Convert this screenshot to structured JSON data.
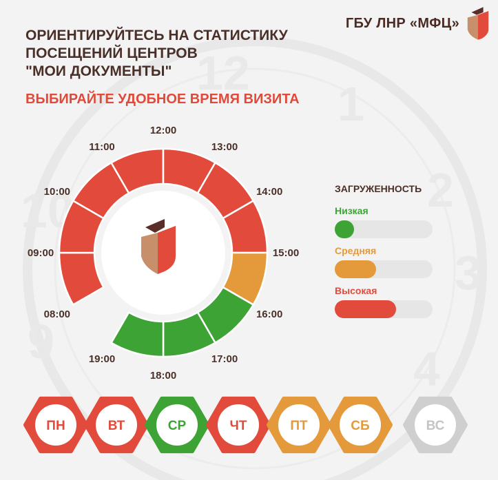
{
  "brand": {
    "name": "ГБУ ЛНР «МФЦ»"
  },
  "headline": {
    "lines": [
      "ОРИЕНТИРУЙТЕСЬ НА СТАТИСТИКУ",
      "ПОСЕЩЕНИЙ ЦЕНТРОВ",
      "\"МОИ ДОКУМЕНТЫ\""
    ]
  },
  "subheadline": "ВЫБИРАЙТЕ УДОБНОЕ ВРЕМЯ ВИЗИТА",
  "colors": {
    "low": "#3ea335",
    "medium": "#e49a3a",
    "high": "#e24b3b",
    "disabled": "#cfcfcf",
    "brown": "#5a2e28",
    "tan": "#c8906a"
  },
  "dial": {
    "hours": [
      "08:00",
      "09:00",
      "10:00",
      "11:00",
      "12:00",
      "13:00",
      "14:00",
      "15:00",
      "16:00",
      "17:00",
      "18:00",
      "19:00"
    ],
    "segments": [
      {
        "from": "08:00",
        "to": "09:00",
        "load": "high"
      },
      {
        "from": "09:00",
        "to": "10:00",
        "load": "high"
      },
      {
        "from": "10:00",
        "to": "11:00",
        "load": "high"
      },
      {
        "from": "11:00",
        "to": "12:00",
        "load": "high"
      },
      {
        "from": "12:00",
        "to": "13:00",
        "load": "high"
      },
      {
        "from": "13:00",
        "to": "14:00",
        "load": "high"
      },
      {
        "from": "14:00",
        "to": "15:00",
        "load": "high"
      },
      {
        "from": "15:00",
        "to": "16:00",
        "load": "medium"
      },
      {
        "from": "16:00",
        "to": "17:00",
        "load": "low"
      },
      {
        "from": "17:00",
        "to": "18:00",
        "load": "low"
      },
      {
        "from": "18:00",
        "to": "19:00",
        "load": "low"
      }
    ]
  },
  "legend": {
    "title": "ЗАГРУЖЕННОСТЬ",
    "items": [
      {
        "label": "Низкая",
        "level": "low",
        "fill": 0.2
      },
      {
        "label": "Средняя",
        "level": "medium",
        "fill": 0.42
      },
      {
        "label": "Высокая",
        "level": "high",
        "fill": 0.63
      }
    ]
  },
  "days": [
    {
      "label": "ПН",
      "load": "high"
    },
    {
      "label": "ВТ",
      "load": "high"
    },
    {
      "label": "СР",
      "load": "low"
    },
    {
      "label": "ЧТ",
      "load": "high"
    },
    {
      "label": "ПТ",
      "load": "medium"
    },
    {
      "label": "СБ",
      "load": "medium"
    },
    {
      "label": "ВС",
      "load": "disabled"
    }
  ]
}
